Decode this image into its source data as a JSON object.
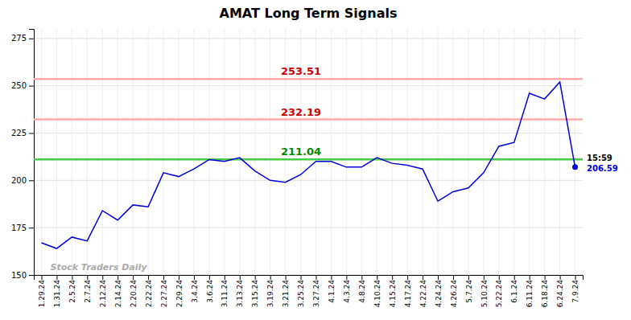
{
  "chart_data": {
    "type": "line",
    "title": "AMAT Long Term Signals",
    "categories": [
      "1.29.24",
      "1.31.24",
      "2.5.24",
      "2.7.24",
      "2.12.24",
      "2.14.24",
      "2.20.24",
      "2.22.24",
      "2.27.24",
      "2.29.24",
      "3.4.24",
      "3.6.24",
      "3.11.24",
      "3.13.24",
      "3.15.24",
      "3.19.24",
      "3.21.24",
      "3.25.24",
      "3.27.24",
      "4.1.24",
      "4.3.24",
      "4.8.24",
      "4.10.24",
      "4.15.24",
      "4.17.24",
      "4.22.24",
      "4.24.24",
      "4.26.24",
      "5.7.24",
      "5.10.24",
      "5.22.24",
      "6.1.24",
      "6.11.24",
      "6.18.24",
      "6.24.24",
      "7.9.24"
    ],
    "values": [
      167,
      164,
      170,
      168,
      184,
      179,
      187,
      186,
      204,
      202,
      206,
      211,
      210,
      212,
      205,
      200,
      199,
      203,
      210,
      210,
      207,
      207,
      212,
      209,
      208,
      206,
      189,
      194,
      196,
      204,
      218,
      220,
      246,
      243,
      252,
      207
    ],
    "color": "#0000dd",
    "ylim": [
      150,
      280
    ],
    "yticks": [
      150,
      175,
      200,
      225,
      250,
      275
    ],
    "grid": true,
    "reference_lines": [
      {
        "value": 211.04,
        "label": "211.04",
        "color": "#44cc44",
        "label_color": "#008800"
      },
      {
        "value": 232.19,
        "label": "232.19",
        "color": "#ffaaaa",
        "label_color": "#cc0000"
      },
      {
        "value": 253.51,
        "label": "253.51",
        "color": "#ffaaaa",
        "label_color": "#cc0000"
      }
    ],
    "last_price": {
      "value": 206.59,
      "label": "206.59",
      "time": "15:59"
    },
    "watermark": "Stock Traders Daily"
  }
}
